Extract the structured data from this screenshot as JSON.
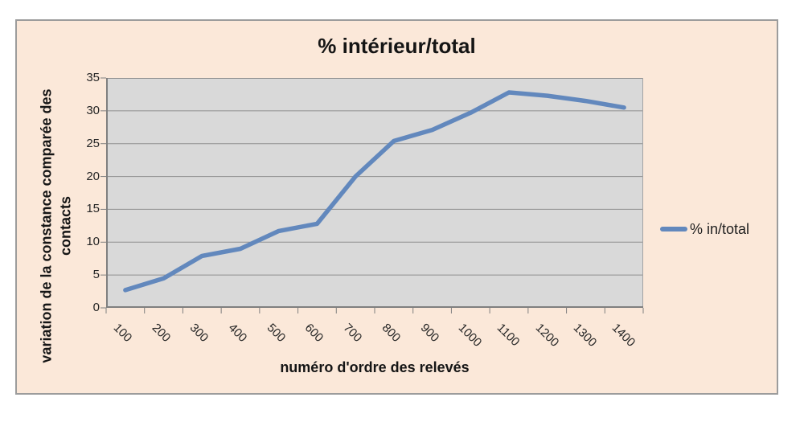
{
  "chart_data": {
    "type": "line",
    "title": "% intérieur/total",
    "xlabel": "numéro d'ordre des relevés",
    "ylabel": "variation de la constance comparée des contacts",
    "ylabel_lines": [
      "variation de la constance comparée des",
      "contacts"
    ],
    "categories": [
      100,
      200,
      300,
      400,
      500,
      600,
      700,
      800,
      900,
      1000,
      1100,
      1200,
      1300,
      1400
    ],
    "series": [
      {
        "name": "% in/total",
        "color": "#6288bd",
        "values": [
          2.7,
          4.5,
          7.9,
          9.0,
          11.7,
          12.8,
          20.0,
          25.4,
          27.1,
          29.7,
          32.8,
          32.3,
          31.5,
          30.5
        ]
      }
    ],
    "ylim": [
      0,
      35
    ],
    "ytick_step": 5,
    "ytick_labels": [
      "0",
      "5",
      "10",
      "15",
      "20",
      "25",
      "30",
      "35"
    ],
    "grid": true,
    "legend_position": "right"
  },
  "colors": {
    "chart_background": "#fbe8d9",
    "plot_background": "#d9d9d9",
    "gridline": "#8f8f8f",
    "axis_line": "#7f7f7f",
    "frame_border": "#9c9c9c",
    "series_line": "#6288bd",
    "text": "#1f1f1f"
  }
}
